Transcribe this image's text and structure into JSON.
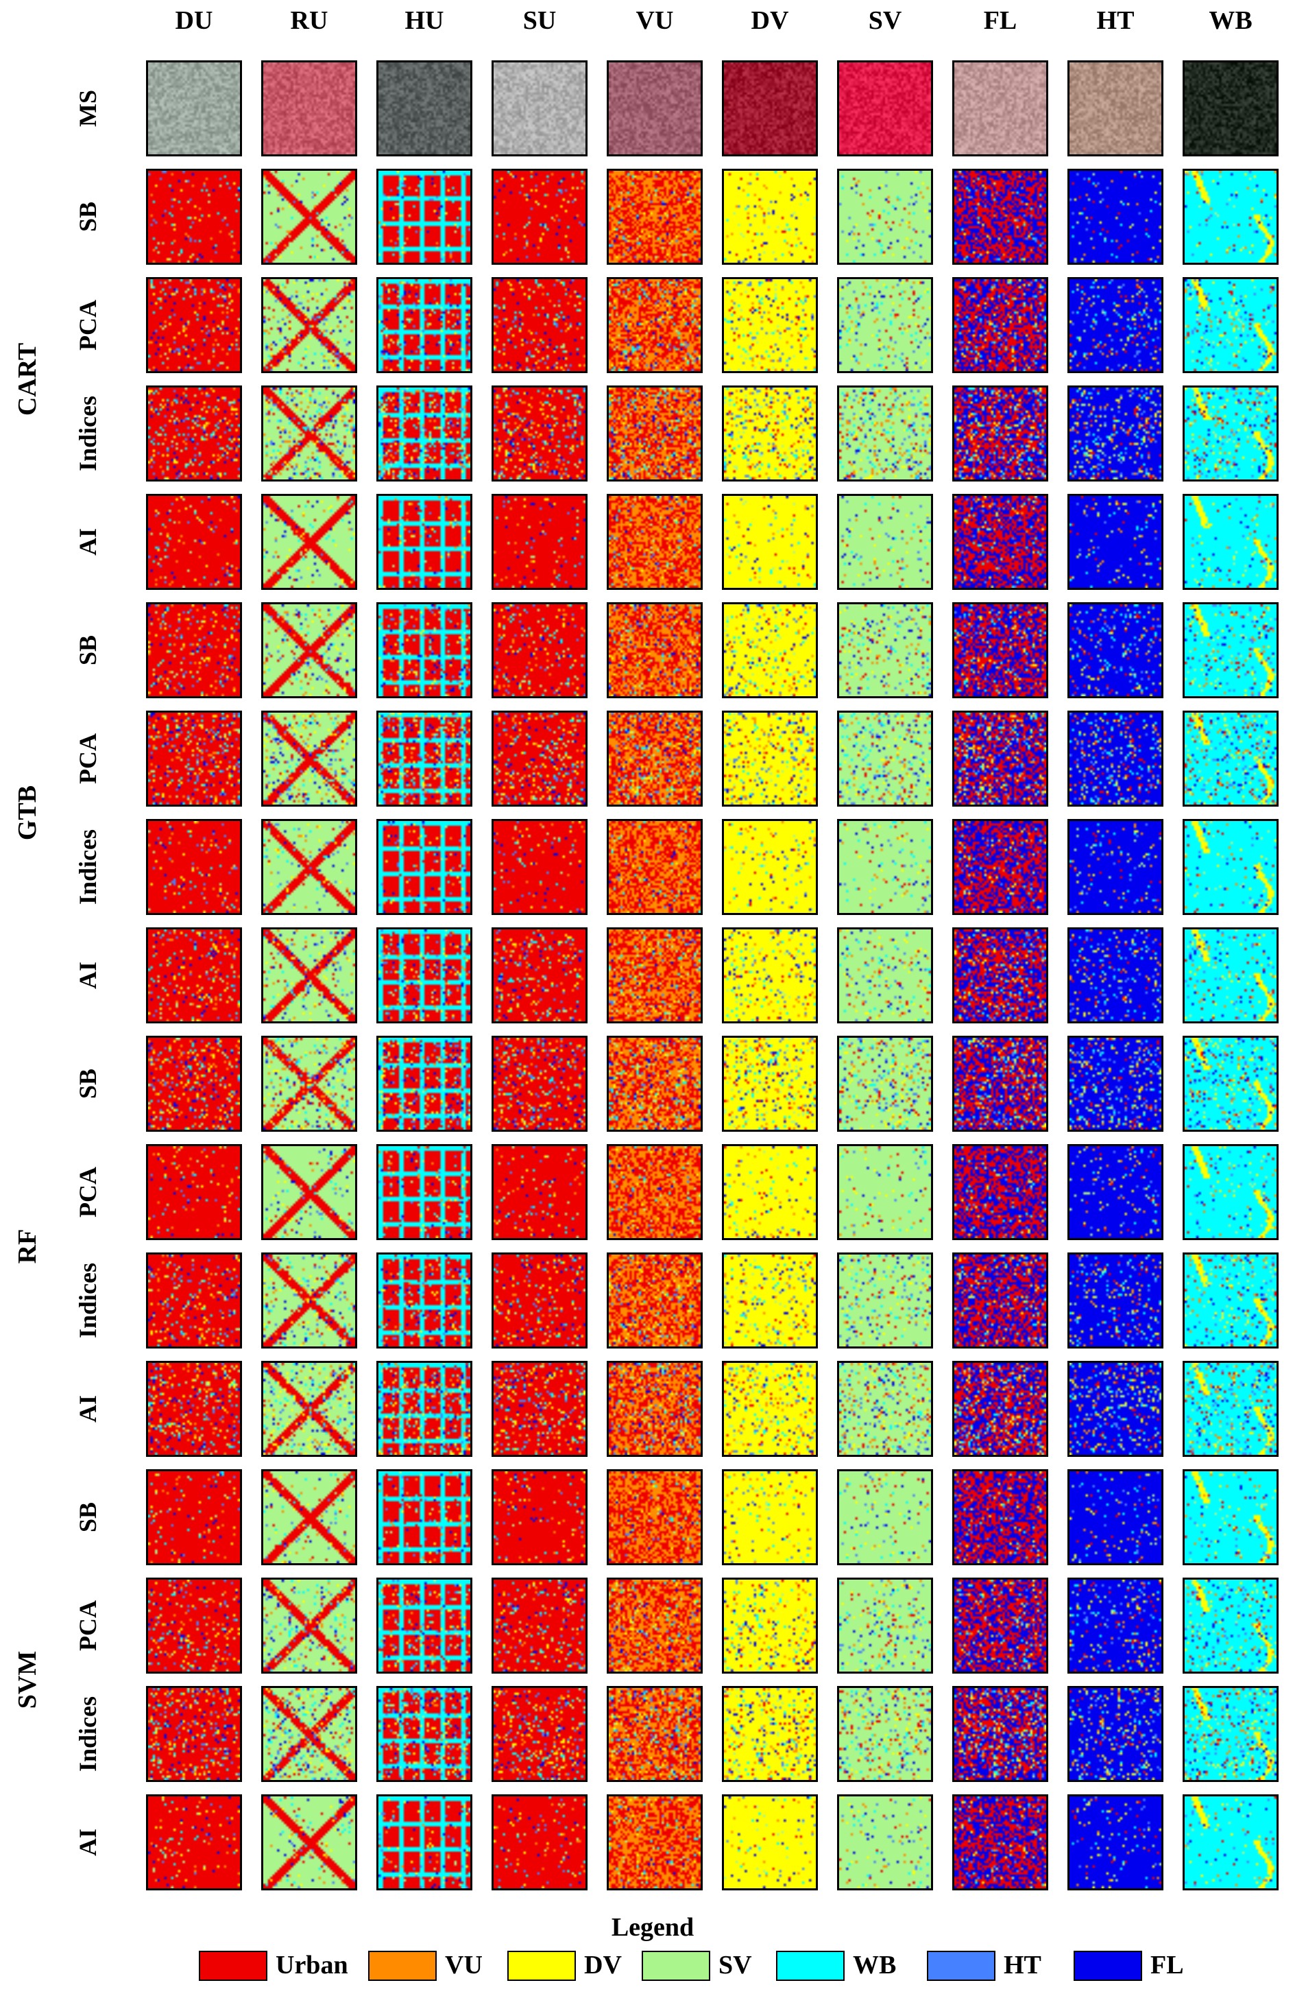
{
  "columns": [
    {
      "label": "DU",
      "base": "urban"
    },
    {
      "label": "RU",
      "base": "road_sv"
    },
    {
      "label": "HU",
      "base": "urban_blocks"
    },
    {
      "label": "SU",
      "base": "urban"
    },
    {
      "label": "VU",
      "base": "mixed_vu"
    },
    {
      "label": "DV",
      "base": "dv"
    },
    {
      "label": "SV",
      "base": "sv"
    },
    {
      "label": "FL",
      "base": "fl"
    },
    {
      "label": "HT",
      "base": "ht"
    },
    {
      "label": "WB",
      "base": "wb"
    }
  ],
  "ms_row_label": "MS",
  "groups": [
    {
      "label": "CART",
      "rows": [
        "SB",
        "PCA",
        "Indices",
        "AI"
      ]
    },
    {
      "label": "GTB",
      "rows": [
        "SB",
        "PCA",
        "Indices",
        "AI"
      ]
    },
    {
      "label": "RF",
      "rows": [
        "SB",
        "PCA",
        "Indices",
        "AI"
      ]
    },
    {
      "label": "SVM",
      "rows": [
        "SB",
        "PCA",
        "Indices",
        "AI"
      ]
    }
  ],
  "legend": {
    "title": "Legend",
    "items": [
      {
        "label": "Urban",
        "color": "#ee0000"
      },
      {
        "label": "VU",
        "color": "#ff8c00"
      },
      {
        "label": "DV",
        "color": "#ffff00"
      },
      {
        "label": "SV",
        "color": "#aaf58c"
      },
      {
        "label": "WB",
        "color": "#00ffff"
      },
      {
        "label": "HT",
        "color": "#4682ff"
      },
      {
        "label": "FL",
        "color": "#0000ee"
      }
    ]
  },
  "ms_tile_colors": [
    "#9aa8a0",
    "#c85a6a",
    "#5a6060",
    "#b0b0b0",
    "#a06070",
    "#a01830",
    "#e01848",
    "#c09898",
    "#b09080",
    "#202a20"
  ]
}
